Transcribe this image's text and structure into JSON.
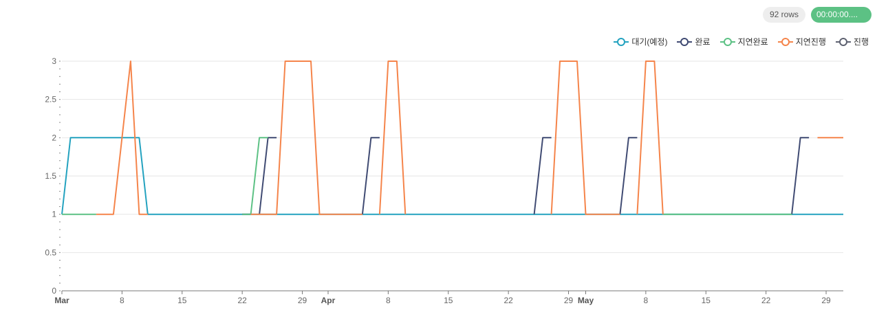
{
  "toolbar": {
    "rows_label": "92 rows",
    "time_label": "00:00:00...."
  },
  "chart_data": {
    "type": "line",
    "x": {
      "type": "date",
      "start": "2025-03-01",
      "end": "2025-05-31",
      "month_labels": [
        {
          "date": "2025-03-01",
          "label": "Mar"
        },
        {
          "date": "2025-04-01",
          "label": "Apr"
        },
        {
          "date": "2025-05-01",
          "label": "May"
        }
      ],
      "day_ticks": [
        {
          "date": "2025-03-08",
          "label": "8"
        },
        {
          "date": "2025-03-15",
          "label": "15"
        },
        {
          "date": "2025-03-22",
          "label": "22"
        },
        {
          "date": "2025-03-29",
          "label": "29"
        },
        {
          "date": "2025-04-08",
          "label": "8"
        },
        {
          "date": "2025-04-15",
          "label": "15"
        },
        {
          "date": "2025-04-22",
          "label": "22"
        },
        {
          "date": "2025-04-29",
          "label": "29"
        },
        {
          "date": "2025-05-08",
          "label": "8"
        },
        {
          "date": "2025-05-15",
          "label": "15"
        },
        {
          "date": "2025-05-22",
          "label": "22"
        },
        {
          "date": "2025-05-29",
          "label": "29"
        }
      ]
    },
    "y": {
      "ylim": [
        0,
        3
      ],
      "ticks": [
        {
          "value": 0,
          "label": "0"
        },
        {
          "value": 0.5,
          "label": "0.5"
        },
        {
          "value": 1,
          "label": "1"
        },
        {
          "value": 1.5,
          "label": "1.5"
        },
        {
          "value": 2,
          "label": "2"
        },
        {
          "value": 2.5,
          "label": "2.5"
        },
        {
          "value": 3,
          "label": "3"
        }
      ]
    },
    "grid": true,
    "legend_position": "top-right",
    "series": [
      {
        "name": "대기(예정)",
        "color": "#23a2bf",
        "segments": [
          [
            [
              "2025-03-01",
              1
            ],
            [
              "2025-03-02",
              2
            ],
            [
              "2025-03-10",
              2
            ],
            [
              "2025-03-11",
              1
            ],
            [
              "2025-05-31",
              1
            ]
          ]
        ]
      },
      {
        "name": "완료",
        "color": "#3f4a72",
        "segments": [
          [
            [
              "2025-03-22",
              1
            ],
            [
              "2025-03-23",
              1
            ]
          ],
          [
            [
              "2025-03-24",
              1
            ],
            [
              "2025-03-25",
              2
            ],
            [
              "2025-03-26",
              2
            ]
          ],
          [
            [
              "2025-04-05",
              1
            ],
            [
              "2025-04-06",
              2
            ],
            [
              "2025-04-07",
              2
            ]
          ],
          [
            [
              "2025-04-25",
              1
            ],
            [
              "2025-04-26",
              2
            ],
            [
              "2025-04-27",
              2
            ]
          ],
          [
            [
              "2025-05-05",
              1
            ],
            [
              "2025-05-06",
              2
            ],
            [
              "2025-05-07",
              2
            ]
          ],
          [
            [
              "2025-05-25",
              1
            ],
            [
              "2025-05-26",
              2
            ],
            [
              "2025-05-27",
              2
            ]
          ]
        ]
      },
      {
        "name": "지연완료",
        "color": "#5cc184",
        "segments": [
          [
            [
              "2025-03-01",
              1
            ],
            [
              "2025-03-05",
              1
            ]
          ],
          [
            [
              "2025-03-22",
              1
            ],
            [
              "2025-03-23",
              1
            ],
            [
              "2025-03-24",
              2
            ],
            [
              "2025-03-25",
              2
            ]
          ],
          [
            [
              "2025-05-10",
              1
            ],
            [
              "2025-05-25",
              1
            ]
          ]
        ]
      },
      {
        "name": "지연진행",
        "color": "#f5844a",
        "segments": [
          [
            [
              "2025-03-05",
              1
            ],
            [
              "2025-03-07",
              1
            ],
            [
              "2025-03-09",
              3
            ],
            [
              "2025-03-10",
              1
            ],
            [
              "2025-03-11",
              1
            ]
          ],
          [
            [
              "2025-03-23",
              1
            ],
            [
              "2025-03-26",
              1
            ],
            [
              "2025-03-27",
              3
            ],
            [
              "2025-03-30",
              3
            ],
            [
              "2025-03-31",
              1
            ],
            [
              "2025-04-05",
              1
            ]
          ],
          [
            [
              "2025-04-07",
              1
            ],
            [
              "2025-04-08",
              3
            ],
            [
              "2025-04-09",
              3
            ],
            [
              "2025-04-10",
              1
            ]
          ],
          [
            [
              "2025-04-27",
              1
            ],
            [
              "2025-04-28",
              3
            ],
            [
              "2025-04-30",
              3
            ],
            [
              "2025-05-01",
              1
            ],
            [
              "2025-05-05",
              1
            ]
          ],
          [
            [
              "2025-05-07",
              1
            ],
            [
              "2025-05-08",
              3
            ],
            [
              "2025-05-09",
              3
            ],
            [
              "2025-05-10",
              1
            ]
          ],
          [
            [
              "2025-05-28",
              2
            ],
            [
              "2025-05-31",
              2
            ]
          ]
        ]
      },
      {
        "name": "진행",
        "color": "#5d6170",
        "segments": []
      }
    ]
  }
}
